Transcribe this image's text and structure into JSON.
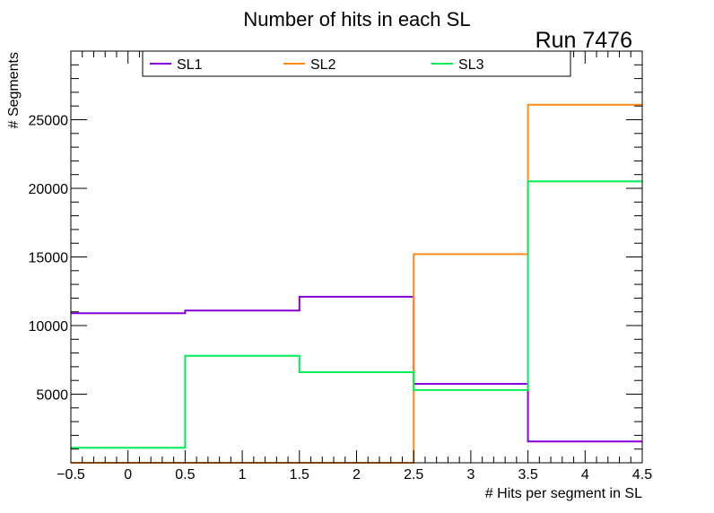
{
  "chart_data": {
    "type": "line",
    "title": "Number of hits in each SL",
    "annotation": "Run 7476",
    "xlabel": "# Hits per segment in SL",
    "ylabel": "# Segments",
    "xlim": [
      -0.5,
      4.5
    ],
    "ylim": [
      0,
      30000
    ],
    "x_ticks": [
      -0.5,
      0,
      0.5,
      1,
      1.5,
      2,
      2.5,
      3,
      3.5,
      4,
      4.5
    ],
    "x_tick_labels": [
      "−0.5",
      "0",
      "0.5",
      "1",
      "1.5",
      "2",
      "2.5",
      "3",
      "3.5",
      "4",
      "4.5"
    ],
    "y_ticks": [
      5000,
      10000,
      15000,
      20000,
      25000
    ],
    "y_tick_labels": [
      "5000",
      "10000",
      "15000",
      "20000",
      "25000"
    ],
    "bin_edges": [
      -0.5,
      0.5,
      1.5,
      2.5,
      3.5,
      4.5
    ],
    "bins": [
      0,
      1,
      2,
      3,
      4
    ],
    "series": [
      {
        "name": "SL1",
        "color": "#8800dd",
        "values": [
          10900,
          11100,
          12100,
          5750,
          1550
        ]
      },
      {
        "name": "SL2",
        "color": "#ff8c1a",
        "values": [
          0,
          0,
          0,
          15200,
          26100
        ]
      },
      {
        "name": "SL3",
        "color": "#00ee55",
        "values": [
          1100,
          7800,
          6600,
          5300,
          20500
        ]
      }
    ],
    "legend": {
      "placement": "top",
      "entries": [
        "SL1",
        "SL2",
        "SL3"
      ]
    },
    "grid": false
  }
}
